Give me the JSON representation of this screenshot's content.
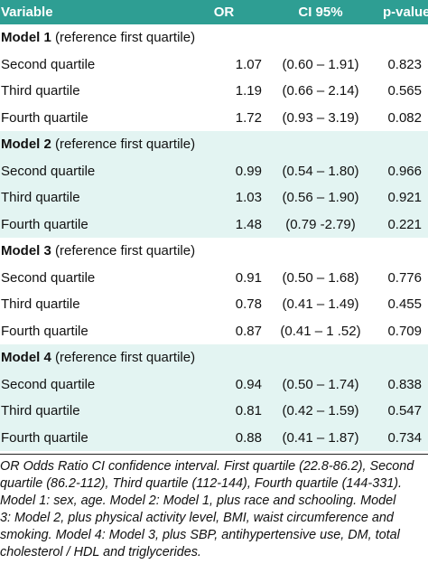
{
  "header": {
    "variable": "Variable",
    "or": "OR",
    "ci": "CI 95%",
    "pvalue": "p-value"
  },
  "models": [
    {
      "name": "Model 1",
      "reference": "(reference first quartile)",
      "rows": [
        {
          "label": "Second quartile",
          "or": "1.07",
          "ci": "(0.60 – 1.91)",
          "p": "0.823"
        },
        {
          "label": "Third quartile",
          "or": "1.19",
          "ci": "(0.66 – 2.14)",
          "p": "0.565"
        },
        {
          "label": "Fourth quartile",
          "or": "1.72",
          "ci": "(0.93 – 3.19)",
          "p": "0.082"
        }
      ]
    },
    {
      "name": "Model 2",
      "reference": "(reference first quartile)",
      "rows": [
        {
          "label": "Second quartile",
          "or": "0.99",
          "ci": "(0.54 – 1.80)",
          "p": "0.966"
        },
        {
          "label": "Third quartile",
          "or": "1.03",
          "ci": "(0.56 – 1.90)",
          "p": "0.921"
        },
        {
          "label": "Fourth quartile",
          "or": "1.48",
          "ci": "(0.79 -2.79)",
          "p": "0.221"
        }
      ]
    },
    {
      "name": "Model 3",
      "reference": "(reference first quartile)",
      "rows": [
        {
          "label": "Second quartile",
          "or": "0.91",
          "ci": "(0.50 – 1.68)",
          "p": "0.776"
        },
        {
          "label": "Third quartile",
          "or": "0.78",
          "ci": "(0.41 – 1.49)",
          "p": "0.455"
        },
        {
          "label": "Fourth quartile",
          "or": "0.87",
          "ci": "(0.41 – 1 .52)",
          "p": "0.709"
        }
      ]
    },
    {
      "name": "Model 4",
      "reference": "(reference first quartile)",
      "rows": [
        {
          "label": "Second quartile",
          "or": "0.94",
          "ci": "(0.50 – 1.74)",
          "p": "0.838"
        },
        {
          "label": "Third quartile",
          "or": "0.81",
          "ci": "(0.42 – 1.59)",
          "p": "0.547"
        },
        {
          "label": "Fourth quartile",
          "or": "0.88",
          "ci": "(0.41 – 1.87)",
          "p": "0.734"
        }
      ]
    }
  ],
  "footnote": {
    "lines": [
      "OR Odds Ratio CI confidence interval. First quartile (22.8-86.2), Second",
      "quartile (86.2-112), Third quartile (112-144), Fourth quartile (144-331).",
      "Model 1: sex, age. Model 2: Model 1, plus race and schooling. Model",
      "3: Model 2, plus physical activity level, BMI, waist circumference and",
      "smoking. Model 4: Model 3, plus SBP, antihypertensive use, DM, total",
      "cholesterol / HDL and triglycerides."
    ]
  },
  "colors": {
    "header_bg": "#2e9e93",
    "header_text": "#ffffff",
    "band_bg": "#e3f4f2",
    "plain_bg": "#ffffff"
  }
}
